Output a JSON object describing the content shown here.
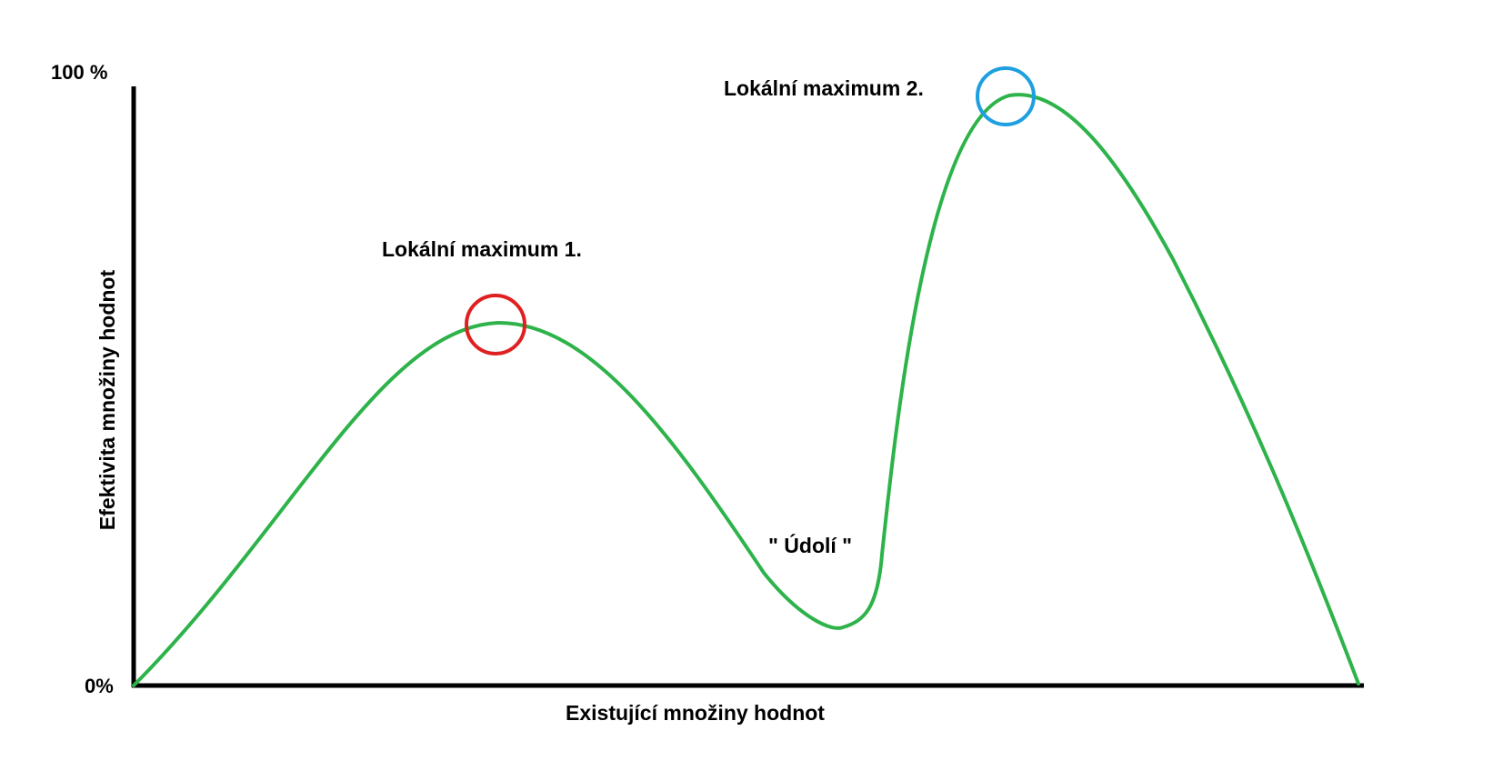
{
  "labels": {
    "y_top": "100 %",
    "y_bottom": "0%",
    "x_axis": "Existující množiny hodnot",
    "y_axis": "Efektivita množiny hodnot",
    "local_max_1": "Lokální maximum 1.",
    "local_max_2": "Lokální maximum 2.",
    "valley": "\" Údolí \""
  },
  "colors": {
    "axis": "#000000",
    "curve": "#2db34a",
    "marker_1": "#e02020",
    "marker_2": "#1ea0e0",
    "background": "#ffffff"
  }
}
